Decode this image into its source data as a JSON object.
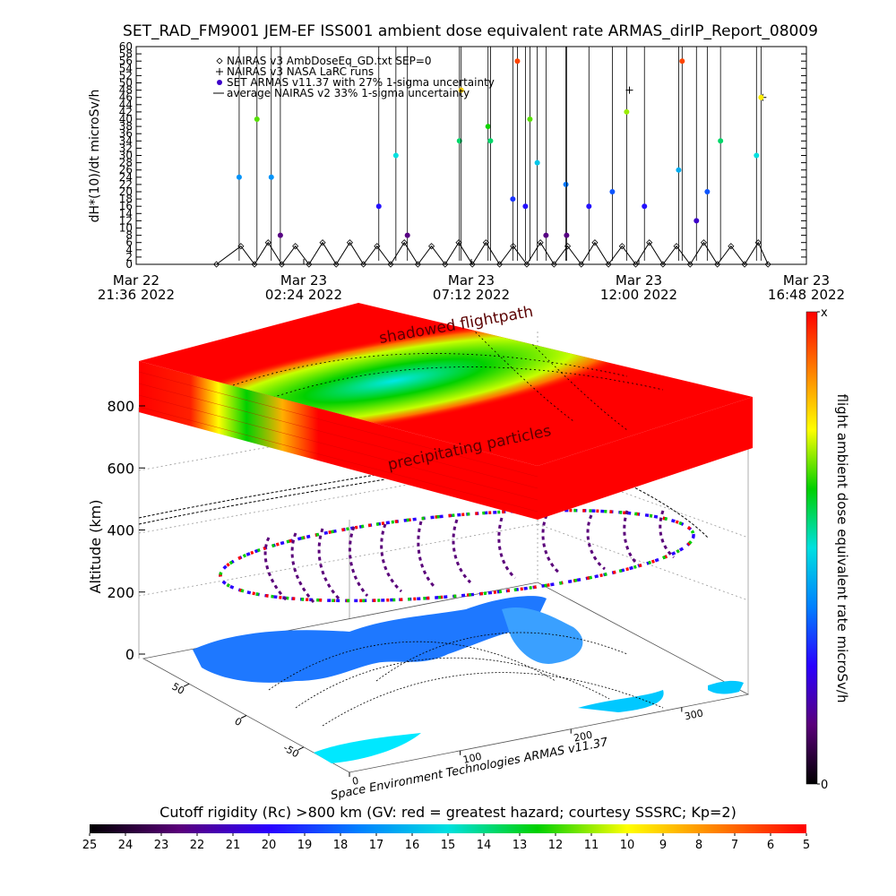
{
  "chart_data": [
    {
      "type": "line",
      "title": "SET_RAD_FM9001  JEM-EF ISS001 ambient dose equivalent rate ARMAS_dirIP_Report_08009",
      "y_label": "dH*(10)/dt microSv/h",
      "xlim": [
        0,
        19.2
      ],
      "xticks": [
        {
          "value": 0,
          "label": "Mar 22\n21:36 2022"
        },
        {
          "value": 4.8,
          "label": "Mar 23\n02:24 2022"
        },
        {
          "value": 9.6,
          "label": "Mar 23\n07:12 2022"
        },
        {
          "value": 14.4,
          "label": "Mar 23\n12:00 2022"
        },
        {
          "value": 19.2,
          "label": "Mar 23\n16:48 2022"
        }
      ],
      "ylim": [
        0,
        60
      ],
      "yticks": [
        0,
        2,
        4,
        6,
        8,
        10,
        12,
        14,
        16,
        18,
        20,
        22,
        24,
        26,
        28,
        30,
        32,
        34,
        36,
        38,
        40,
        42,
        44,
        46,
        48,
        50,
        52,
        54,
        56,
        58,
        60
      ],
      "series": [
        {
          "name": "NAIRAS v3 AmbDoseEq_GD.txt SEP=0",
          "marker": "diamond",
          "color": "#000000",
          "x": [
            2.3,
            3.0,
            3.39,
            3.78,
            4.17,
            4.56,
            4.95,
            5.34,
            5.73,
            6.12,
            6.51,
            6.9,
            7.29,
            7.68,
            8.07,
            8.46,
            8.85,
            9.24,
            9.63,
            10.02,
            10.41,
            10.8,
            11.19,
            11.58,
            11.97,
            12.36,
            12.75,
            13.14,
            13.53,
            13.92,
            14.31,
            14.7,
            15.09,
            15.48,
            15.87,
            16.26,
            16.65,
            17.04,
            17.43,
            17.82,
            18.1
          ],
          "values": [
            0,
            5,
            0,
            6,
            0,
            5,
            0,
            6,
            0,
            6,
            0,
            5,
            0,
            6,
            0,
            5,
            0,
            6,
            0,
            6,
            0,
            5,
            0,
            6,
            0,
            5,
            0,
            6,
            0,
            5,
            0,
            6,
            0,
            5,
            0,
            6,
            0,
            5,
            0,
            6,
            0
          ]
        },
        {
          "name": "NAIRAS v3 NASA LaRC runs",
          "marker": "plus",
          "color": "#000000",
          "x": [
            14.13,
            17.95
          ],
          "values": [
            48,
            46
          ]
        },
        {
          "name": "SET ARMAS v11.37 with 27% 1-sigma uncertainty",
          "marker": "dot",
          "color_by_value": true,
          "x": [
            2.95,
            3.46,
            3.87,
            4.13,
            6.95,
            7.44,
            7.77,
            9.26,
            9.31,
            10.08,
            10.15,
            10.79,
            10.92,
            11.15,
            11.28,
            11.49,
            11.74,
            12.31,
            12.33,
            12.97,
            13.64,
            14.05,
            14.56,
            15.54,
            15.64,
            16.05,
            16.36,
            16.74,
            17.77,
            17.9
          ],
          "values": [
            24,
            40,
            24,
            8,
            16,
            30,
            8,
            34,
            48,
            38,
            34,
            18,
            56,
            16,
            40,
            28,
            8,
            22,
            8,
            16,
            20,
            42,
            16,
            26,
            56,
            12,
            20,
            34,
            30,
            46
          ]
        },
        {
          "name": "average NAIRAS v2 33% 1-sigma uncertainty",
          "marker": "line",
          "color": "#000000",
          "x": [
            2.3,
            18.1
          ],
          "values": [
            0,
            0
          ]
        }
      ]
    },
    {
      "type": "surface3d",
      "z_label": "Altitude (km)",
      "zlim": [
        0,
        800
      ],
      "zticks": [
        0,
        200,
        400,
        600,
        800
      ],
      "ylim": [
        90,
        -90
      ],
      "yticks": [
        50,
        0,
        -50
      ],
      "xlim": [
        0,
        360
      ],
      "xticks": [
        0,
        100,
        200,
        300
      ],
      "annotations": [
        "shadowed flightpath",
        "precipitating particles"
      ],
      "credit": "Space Environment Technologies ARMAS v11.37"
    },
    {
      "type": "colorbar",
      "orientation": "vertical",
      "label": "flight ambient dose equivalent rate microSv/h",
      "ylim": [
        0,
        60
      ],
      "yticks": [
        0,
        {
          "value": 60,
          "label": "x"
        }
      ],
      "colors": [
        "#000000",
        "#5a007a",
        "#2a00ff",
        "#0080ff",
        "#00e0e0",
        "#00d000",
        "#ffff00",
        "#ff8000",
        "#ff0000"
      ]
    },
    {
      "type": "colorbar",
      "orientation": "horizontal",
      "label": "Cutoff rigidity (Rc) >800 km (GV: red = greatest hazard; courtesy SSSRC; Kp=2)",
      "xlim": [
        25,
        5
      ],
      "xticks": [
        25,
        24,
        23,
        22,
        21,
        20,
        19,
        18,
        17,
        16,
        15,
        14,
        13,
        12,
        11,
        10,
        9,
        8,
        7,
        6,
        5
      ],
      "colors": [
        "#000000",
        "#5a007a",
        "#2a00ff",
        "#0080ff",
        "#00e0e0",
        "#00d000",
        "#ffff00",
        "#ff8000",
        "#ff0000"
      ]
    }
  ]
}
